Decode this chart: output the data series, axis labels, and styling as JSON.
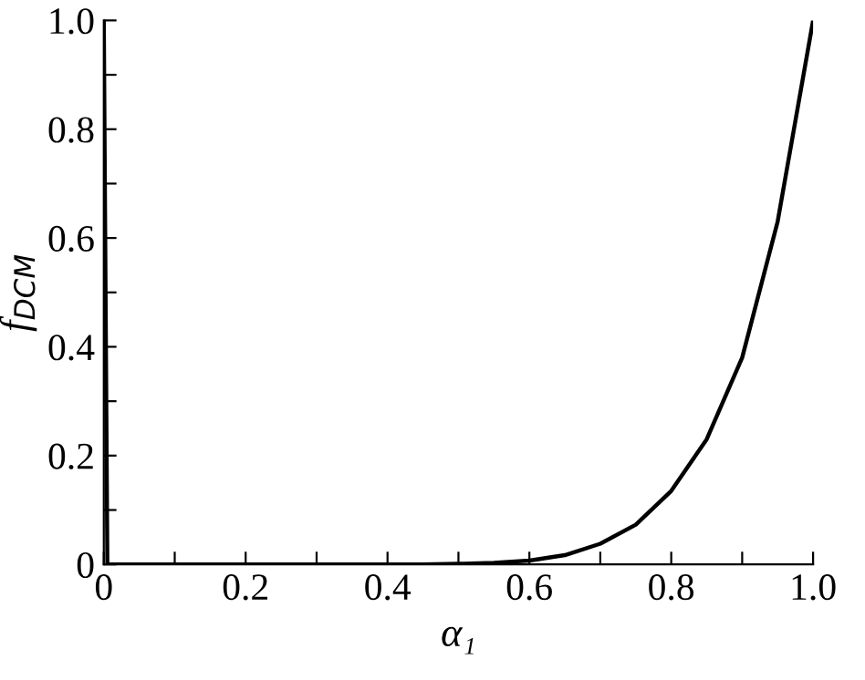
{
  "chart_data": {
    "type": "line",
    "xlabel": "α₁",
    "ylabel": "f$_{DCM}$",
    "x": [
      0,
      0.005,
      0.05,
      0.1,
      0.15,
      0.2,
      0.25,
      0.3,
      0.35,
      0.4,
      0.45,
      0.5,
      0.55,
      0.6,
      0.65,
      0.7,
      0.75,
      0.8,
      0.85,
      0.9,
      0.95,
      1.0
    ],
    "series": [
      {
        "color": "#000000",
        "values": [
          1.0,
          0,
          0,
          0,
          0,
          0,
          0,
          0,
          0,
          0,
          0,
          0.001,
          0.003,
          0.007,
          0.017,
          0.038,
          0.073,
          0.135,
          0.23,
          0.38,
          0.63,
          1.0
        ]
      }
    ],
    "xlim": [
      0,
      1.0
    ],
    "ylim": [
      0,
      1.0
    ],
    "xticks": [
      0,
      {
        "value": 0.1,
        "label": null
      },
      {
        "value": 0.2,
        "label": "0.2"
      },
      {
        "value": 0.3,
        "label": null
      },
      {
        "value": 0.4,
        "label": "0.4"
      },
      {
        "value": 0.5,
        "label": null
      },
      {
        "value": 0.6,
        "label": "0.6"
      },
      {
        "value": 0.7,
        "label": null
      },
      {
        "value": 0.8,
        "label": "0.8"
      },
      {
        "value": 0.9,
        "label": null
      },
      {
        "value": 1.0,
        "label": "1.0"
      }
    ],
    "yticks": [
      0,
      {
        "value": 0.1,
        "label": null
      },
      {
        "value": 0.2,
        "label": "0.2"
      },
      {
        "value": 0.3,
        "label": null
      },
      {
        "value": 0.4,
        "label": "0.4"
      },
      {
        "value": 0.5,
        "label": null
      },
      {
        "value": 0.6,
        "label": "0.6"
      },
      {
        "value": 0.7,
        "label": null
      },
      {
        "value": 0.8,
        "label": "0.8"
      },
      {
        "value": 0.9,
        "label": null
      },
      {
        "value": 1.0,
        "label": "1.0"
      }
    ],
    "grid": false,
    "marker": "none",
    "line_style": "solid"
  }
}
